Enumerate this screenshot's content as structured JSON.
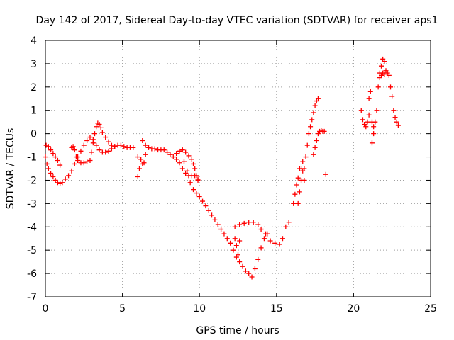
{
  "chart_data": {
    "type": "scatter",
    "title": "Day 142 of 2017, Sidereal Day-to-day VTEC variation (SDTVAR) for receiver aps1",
    "xlabel": "GPS time / hours",
    "ylabel": "SDTVAR / TECUs",
    "xlim": [
      0,
      25
    ],
    "ylim": [
      -7,
      4
    ],
    "xticks": [
      0,
      5,
      10,
      15,
      20,
      25
    ],
    "yticks": [
      -7,
      -6,
      -5,
      -4,
      -3,
      -2,
      -1,
      0,
      1,
      2,
      3,
      4
    ],
    "grid": true,
    "marker": "plus",
    "color": "#ff0000",
    "series": [
      {
        "points": [
          [
            0.0,
            -1.0
          ],
          [
            0.1,
            -1.3
          ],
          [
            0.2,
            -1.5
          ],
          [
            0.35,
            -1.7
          ],
          [
            0.5,
            -1.85
          ],
          [
            0.65,
            -2.0
          ],
          [
            0.8,
            -2.1
          ],
          [
            0.95,
            -2.15
          ],
          [
            1.1,
            -2.1
          ],
          [
            1.3,
            -1.95
          ],
          [
            1.5,
            -1.8
          ],
          [
            1.7,
            -1.6
          ],
          [
            1.9,
            -1.3
          ],
          [
            2.1,
            -1.0
          ],
          [
            2.3,
            -0.75
          ],
          [
            2.5,
            -0.5
          ],
          [
            2.7,
            -0.3
          ],
          [
            2.9,
            -0.15
          ],
          [
            3.1,
            -0.25
          ],
          [
            3.3,
            -0.5
          ],
          [
            3.5,
            -0.7
          ],
          [
            3.7,
            -0.8
          ],
          [
            3.9,
            -0.8
          ],
          [
            4.1,
            -0.75
          ],
          [
            4.3,
            -0.65
          ],
          [
            4.5,
            -0.55
          ],
          [
            4.7,
            -0.5
          ],
          [
            4.9,
            -0.5
          ],
          [
            5.1,
            -0.55
          ],
          [
            5.3,
            -0.6
          ],
          [
            5.5,
            -0.6
          ],
          [
            5.7,
            -0.6
          ],
          [
            0.05,
            -0.5
          ],
          [
            0.2,
            -0.55
          ],
          [
            0.35,
            -0.7
          ],
          [
            0.5,
            -0.85
          ],
          [
            0.65,
            -1.0
          ],
          [
            0.8,
            -1.15
          ],
          [
            0.95,
            -1.35
          ],
          [
            1.7,
            -0.6
          ],
          [
            1.8,
            -0.55
          ],
          [
            1.9,
            -0.7
          ],
          [
            2.0,
            -1.0
          ],
          [
            2.1,
            -1.15
          ],
          [
            2.3,
            -1.25
          ],
          [
            2.5,
            -1.25
          ],
          [
            2.7,
            -1.2
          ],
          [
            2.9,
            -1.15
          ],
          [
            3.0,
            -0.8
          ],
          [
            3.1,
            -0.4
          ],
          [
            3.2,
            0.0
          ],
          [
            3.3,
            0.3
          ],
          [
            3.4,
            0.45
          ],
          [
            3.5,
            0.4
          ],
          [
            3.6,
            0.25
          ],
          [
            3.7,
            0.05
          ],
          [
            3.9,
            -0.15
          ],
          [
            4.1,
            -0.35
          ],
          [
            4.3,
            -0.5
          ],
          [
            4.5,
            -0.55
          ],
          [
            6.0,
            -1.85
          ],
          [
            6.1,
            -1.5
          ],
          [
            6.2,
            -1.1
          ],
          [
            6.3,
            -1.3
          ],
          [
            6.4,
            -1.25
          ],
          [
            6.5,
            -0.9
          ],
          [
            6.0,
            -1.0
          ],
          [
            6.3,
            -0.3
          ],
          [
            6.5,
            -0.5
          ],
          [
            6.7,
            -0.6
          ],
          [
            6.9,
            -0.65
          ],
          [
            7.1,
            -0.65
          ],
          [
            7.3,
            -0.7
          ],
          [
            7.5,
            -0.7
          ],
          [
            7.7,
            -0.7
          ],
          [
            7.9,
            -0.8
          ],
          [
            8.1,
            -0.9
          ],
          [
            8.3,
            -1.0
          ],
          [
            8.5,
            -1.1
          ],
          [
            8.7,
            -1.25
          ],
          [
            8.9,
            -1.5
          ],
          [
            9.1,
            -1.7
          ],
          [
            9.3,
            -1.8
          ],
          [
            9.5,
            -1.8
          ],
          [
            9.7,
            -1.8
          ],
          [
            9.9,
            -1.95
          ],
          [
            8.5,
            -0.85
          ],
          [
            8.7,
            -0.75
          ],
          [
            8.9,
            -0.7
          ],
          [
            9.1,
            -0.8
          ],
          [
            9.3,
            -0.95
          ],
          [
            9.5,
            -1.1
          ],
          [
            9.6,
            -1.3
          ],
          [
            9.7,
            -1.5
          ],
          [
            9.8,
            -1.8
          ],
          [
            9.9,
            -2.0
          ],
          [
            9.0,
            -1.2
          ],
          [
            9.2,
            -1.6
          ],
          [
            9.4,
            -2.1
          ],
          [
            9.6,
            -2.4
          ],
          [
            9.8,
            -2.55
          ],
          [
            10.0,
            -2.7
          ],
          [
            10.2,
            -2.9
          ],
          [
            10.4,
            -3.1
          ],
          [
            10.6,
            -3.3
          ],
          [
            10.8,
            -3.5
          ],
          [
            11.0,
            -3.7
          ],
          [
            11.2,
            -3.9
          ],
          [
            11.4,
            -4.1
          ],
          [
            11.6,
            -4.3
          ],
          [
            11.8,
            -4.5
          ],
          [
            12.0,
            -4.7
          ],
          [
            12.2,
            -5.0
          ],
          [
            12.4,
            -5.3
          ],
          [
            12.6,
            -5.5
          ],
          [
            12.8,
            -5.7
          ],
          [
            13.0,
            -5.9
          ],
          [
            13.2,
            -6.0
          ],
          [
            13.4,
            -6.15
          ],
          [
            13.6,
            -5.8
          ],
          [
            13.8,
            -5.4
          ],
          [
            14.0,
            -4.9
          ],
          [
            14.2,
            -4.5
          ],
          [
            14.4,
            -4.3
          ],
          [
            12.3,
            -4.5
          ],
          [
            12.4,
            -4.8
          ],
          [
            12.5,
            -5.2
          ],
          [
            12.6,
            -4.6
          ],
          [
            12.3,
            -4.0
          ],
          [
            12.6,
            -3.9
          ],
          [
            12.9,
            -3.85
          ],
          [
            13.2,
            -3.8
          ],
          [
            13.5,
            -3.8
          ],
          [
            13.8,
            -3.9
          ],
          [
            14.0,
            -4.1
          ],
          [
            14.3,
            -4.3
          ],
          [
            14.6,
            -4.6
          ],
          [
            14.9,
            -4.7
          ],
          [
            15.2,
            -4.75
          ],
          [
            15.4,
            -4.5
          ],
          [
            15.6,
            -4.0
          ],
          [
            15.8,
            -3.8
          ],
          [
            16.1,
            -3.0
          ],
          [
            16.2,
            -2.6
          ],
          [
            16.3,
            -2.2
          ],
          [
            16.4,
            -1.9
          ],
          [
            16.5,
            -1.5
          ],
          [
            16.6,
            -1.5
          ],
          [
            16.7,
            -1.2
          ],
          [
            16.8,
            -1.5
          ],
          [
            16.9,
            -1.0
          ],
          [
            17.0,
            -0.5
          ],
          [
            17.1,
            0.0
          ],
          [
            17.2,
            0.3
          ],
          [
            17.3,
            0.6
          ],
          [
            17.4,
            0.9
          ],
          [
            17.5,
            1.2
          ],
          [
            17.6,
            1.4
          ],
          [
            17.7,
            1.5
          ],
          [
            16.4,
            -3.0
          ],
          [
            16.5,
            -2.5
          ],
          [
            16.6,
            -2.0
          ],
          [
            16.7,
            -1.6
          ],
          [
            16.8,
            -2.0
          ],
          [
            17.4,
            -0.9
          ],
          [
            17.5,
            -0.6
          ],
          [
            17.6,
            -0.3
          ],
          [
            17.7,
            0.0
          ],
          [
            17.8,
            0.1
          ],
          [
            17.9,
            0.15
          ],
          [
            18.0,
            0.1
          ],
          [
            18.1,
            0.1
          ],
          [
            18.2,
            -1.75
          ],
          [
            20.5,
            1.0
          ],
          [
            20.6,
            0.6
          ],
          [
            20.7,
            0.4
          ],
          [
            20.8,
            0.3
          ],
          [
            20.9,
            0.5
          ],
          [
            21.0,
            0.8
          ],
          [
            21.0,
            1.5
          ],
          [
            21.1,
            1.8
          ],
          [
            21.2,
            0.5
          ],
          [
            21.3,
            0.0
          ],
          [
            21.2,
            -0.4
          ],
          [
            21.3,
            0.3
          ],
          [
            21.4,
            0.5
          ],
          [
            21.5,
            1.0
          ],
          [
            21.6,
            2.0
          ],
          [
            21.7,
            2.6
          ],
          [
            21.8,
            2.9
          ],
          [
            21.9,
            3.2
          ],
          [
            22.0,
            3.1
          ],
          [
            22.1,
            2.7
          ],
          [
            22.2,
            2.6
          ],
          [
            22.3,
            2.5
          ],
          [
            22.4,
            2.0
          ],
          [
            22.5,
            1.6
          ],
          [
            22.6,
            1.0
          ],
          [
            22.7,
            0.7
          ],
          [
            22.8,
            0.5
          ],
          [
            22.9,
            0.35
          ],
          [
            21.7,
            2.4
          ],
          [
            21.8,
            2.5
          ],
          [
            21.9,
            2.6
          ],
          [
            22.0,
            2.55
          ]
        ]
      }
    ]
  }
}
